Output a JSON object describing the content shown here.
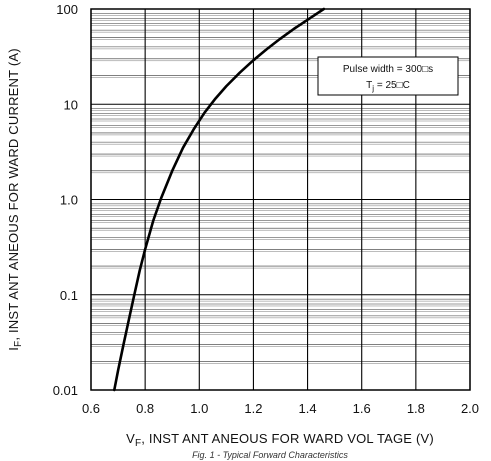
{
  "chart_data": {
    "type": "line",
    "scale": {
      "x": "linear",
      "y": "log"
    },
    "xlim": [
      0.6,
      2.0
    ],
    "ylim": [
      0.01,
      100
    ],
    "x_ticks": [
      0.6,
      0.8,
      1.0,
      1.2,
      1.4,
      1.6,
      1.8,
      2.0
    ],
    "x_tick_labels": [
      "0.6",
      "0.8",
      "1.0",
      "1.2",
      "1.4",
      "1.6",
      "1.8",
      "2.0"
    ],
    "y_ticks": [
      0.01,
      0.1,
      1.0,
      10,
      100
    ],
    "y_tick_labels": [
      "0.01",
      "0.1",
      "1.0",
      "10",
      "100"
    ],
    "xlabel": {
      "main": "V",
      "sub": "F",
      "rest": ", INST ANT ANEOUS   FOR WARD  VOL TAGE  (V)"
    },
    "ylabel": {
      "main": "I",
      "sub": "F",
      "rest": ", INST ANT ANEOUS   FOR WARD  CURRENT    (A)"
    },
    "annotation": {
      "line1": "Pulse  width = 300□s",
      "line2_main": "T",
      "line2_sub": "j",
      "line2_rest": " = 25□C"
    },
    "caption": "Fig. 1 - Typical Forward Characteristics",
    "grid": true,
    "series": [
      {
        "x": [
          0.686,
          0.7,
          0.72,
          0.74,
          0.76,
          0.78,
          0.8,
          0.83,
          0.86,
          0.9,
          0.94,
          0.98,
          1.02,
          1.06,
          1.1,
          1.15,
          1.2,
          1.25,
          1.3,
          1.35,
          1.4,
          1.46
        ],
        "y": [
          0.01,
          0.016,
          0.03,
          0.055,
          0.1,
          0.18,
          0.3,
          0.6,
          1.05,
          2.0,
          3.5,
          5.5,
          8.2,
          11.5,
          15.5,
          21.5,
          29.0,
          38.0,
          49.0,
          62.0,
          77.0,
          100.0
        ]
      }
    ]
  }
}
